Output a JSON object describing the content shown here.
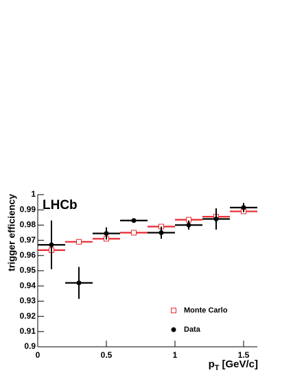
{
  "chart_data": {
    "type": "scatter",
    "annotation": "LHCb",
    "ylabel": "trigger efficiency",
    "xlabel": "p",
    "xlabel_subscript": "T",
    "xlabel_unit": "[GeV/c]",
    "xlim": [
      0,
      1.6
    ],
    "xticks": [
      0,
      0.5,
      1,
      1.5
    ],
    "ylim": [
      0.9,
      1
    ],
    "yticks": [
      0.9,
      0.91,
      0.92,
      0.93,
      0.94,
      0.95,
      0.96,
      0.97,
      0.98,
      0.99,
      1
    ],
    "legend": "lower right",
    "series": [
      {
        "name": "Monte Carlo",
        "color": "#e8262b",
        "marker": "open-square",
        "x": [
          0.1,
          0.3,
          0.5,
          0.7,
          0.9,
          1.1,
          1.3,
          1.5
        ],
        "xerr": [
          0.1,
          0.1,
          0.1,
          0.1,
          0.1,
          0.1,
          0.1,
          0.1
        ],
        "values": [
          0.9635,
          0.969,
          0.971,
          0.975,
          0.979,
          0.9835,
          0.9855,
          0.989
        ]
      },
      {
        "name": "Data",
        "color": "#000000",
        "marker": "filled-circle",
        "x": [
          0.1,
          0.3,
          0.5,
          0.7,
          0.9,
          1.1,
          1.3,
          1.5
        ],
        "xerr": [
          0.1,
          0.1,
          0.1,
          0.1,
          0.1,
          0.1,
          0.1,
          0.1
        ],
        "values": [
          0.967,
          0.942,
          0.9745,
          0.983,
          0.975,
          0.98,
          0.984,
          0.9915
        ],
        "yerr": [
          0.016,
          0.0105,
          0.004,
          0.001,
          0.004,
          0.003,
          0.007,
          0.003
        ]
      }
    ]
  }
}
